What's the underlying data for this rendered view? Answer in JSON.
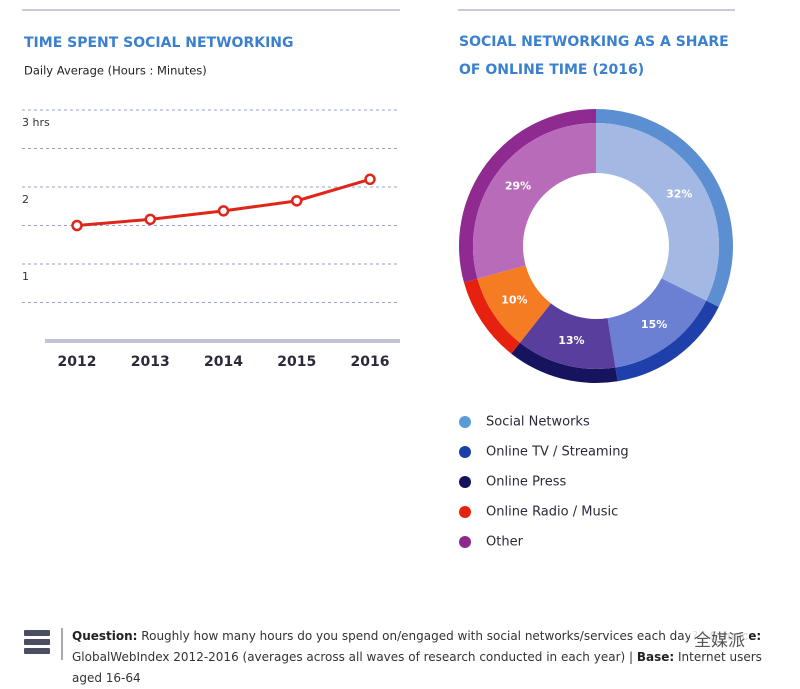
{
  "chart_data": [
    {
      "type": "line",
      "title": "TIME SPENT SOCIAL NETWORKING",
      "subtitle": "Daily Average (Hours : Minutes)",
      "categories": [
        "2012",
        "2013",
        "2014",
        "2015",
        "2016"
      ],
      "values": [
        1.5,
        1.58,
        1.69,
        1.82,
        2.1
      ],
      "color": "#e0261a",
      "ylim": [
        0,
        3
      ],
      "yticks": [
        {
          "value": 3,
          "label": "3 hrs"
        },
        2,
        1
      ],
      "ygrid": [
        0.5,
        1,
        1.5,
        2,
        2.5,
        3
      ]
    },
    {
      "type": "donut",
      "title": "SOCIAL NETWORKING AS A SHARE OF ONLINE TIME (2016)",
      "categories": [
        "Social Networks",
        "Online TV / Streaming",
        "Online Press",
        "Online Radio / Music",
        "Other"
      ],
      "values": [
        32,
        15,
        13,
        10,
        29
      ],
      "value_labels": [
        "32%",
        "15%",
        "13%",
        "10%",
        "29%"
      ],
      "colors": [
        "#a3b9e3",
        "#6b7fd3",
        "#5a3e9e",
        "#f57c22",
        "#b86bb9"
      ],
      "ring_colors": [
        "#5b8fd2",
        "#1f40aa",
        "#16145e",
        "#e6210f",
        "#8f2b90"
      ],
      "legend_colors": [
        "#5b9bd5",
        "#1b3fa8",
        "#14125a",
        "#e8200e",
        "#8e2a8e"
      ]
    }
  ],
  "footer": {
    "question_label": "Question:",
    "question": "Roughly how many hours do you spend on/engaged with social networks/services each day?",
    "source_label": "Source:",
    "source": "GlobalWebIndex 2012-2016 (averages across all waves of research conducted in each year)",
    "base_label": "Base:",
    "base": "Internet users aged 16-64"
  },
  "watermark": "全媒派"
}
